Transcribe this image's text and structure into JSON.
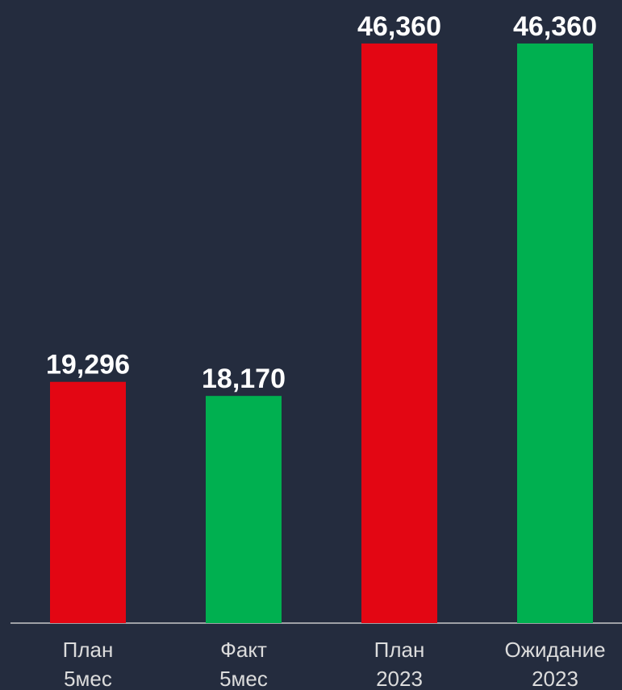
{
  "chart_data": {
    "type": "bar",
    "categories": [
      [
        "План",
        "5мес"
      ],
      [
        "Факт",
        "5мес"
      ],
      [
        "План",
        "2023"
      ],
      [
        "Ожидание",
        "2023"
      ]
    ],
    "values": [
      19296,
      18170,
      46360,
      46360
    ],
    "value_labels": [
      "19,296",
      "18,170",
      "46,360",
      "46,360"
    ],
    "colors": [
      "#e30613",
      "#00b050",
      "#e30613",
      "#00b050"
    ],
    "ylim": [
      0,
      50000
    ]
  }
}
